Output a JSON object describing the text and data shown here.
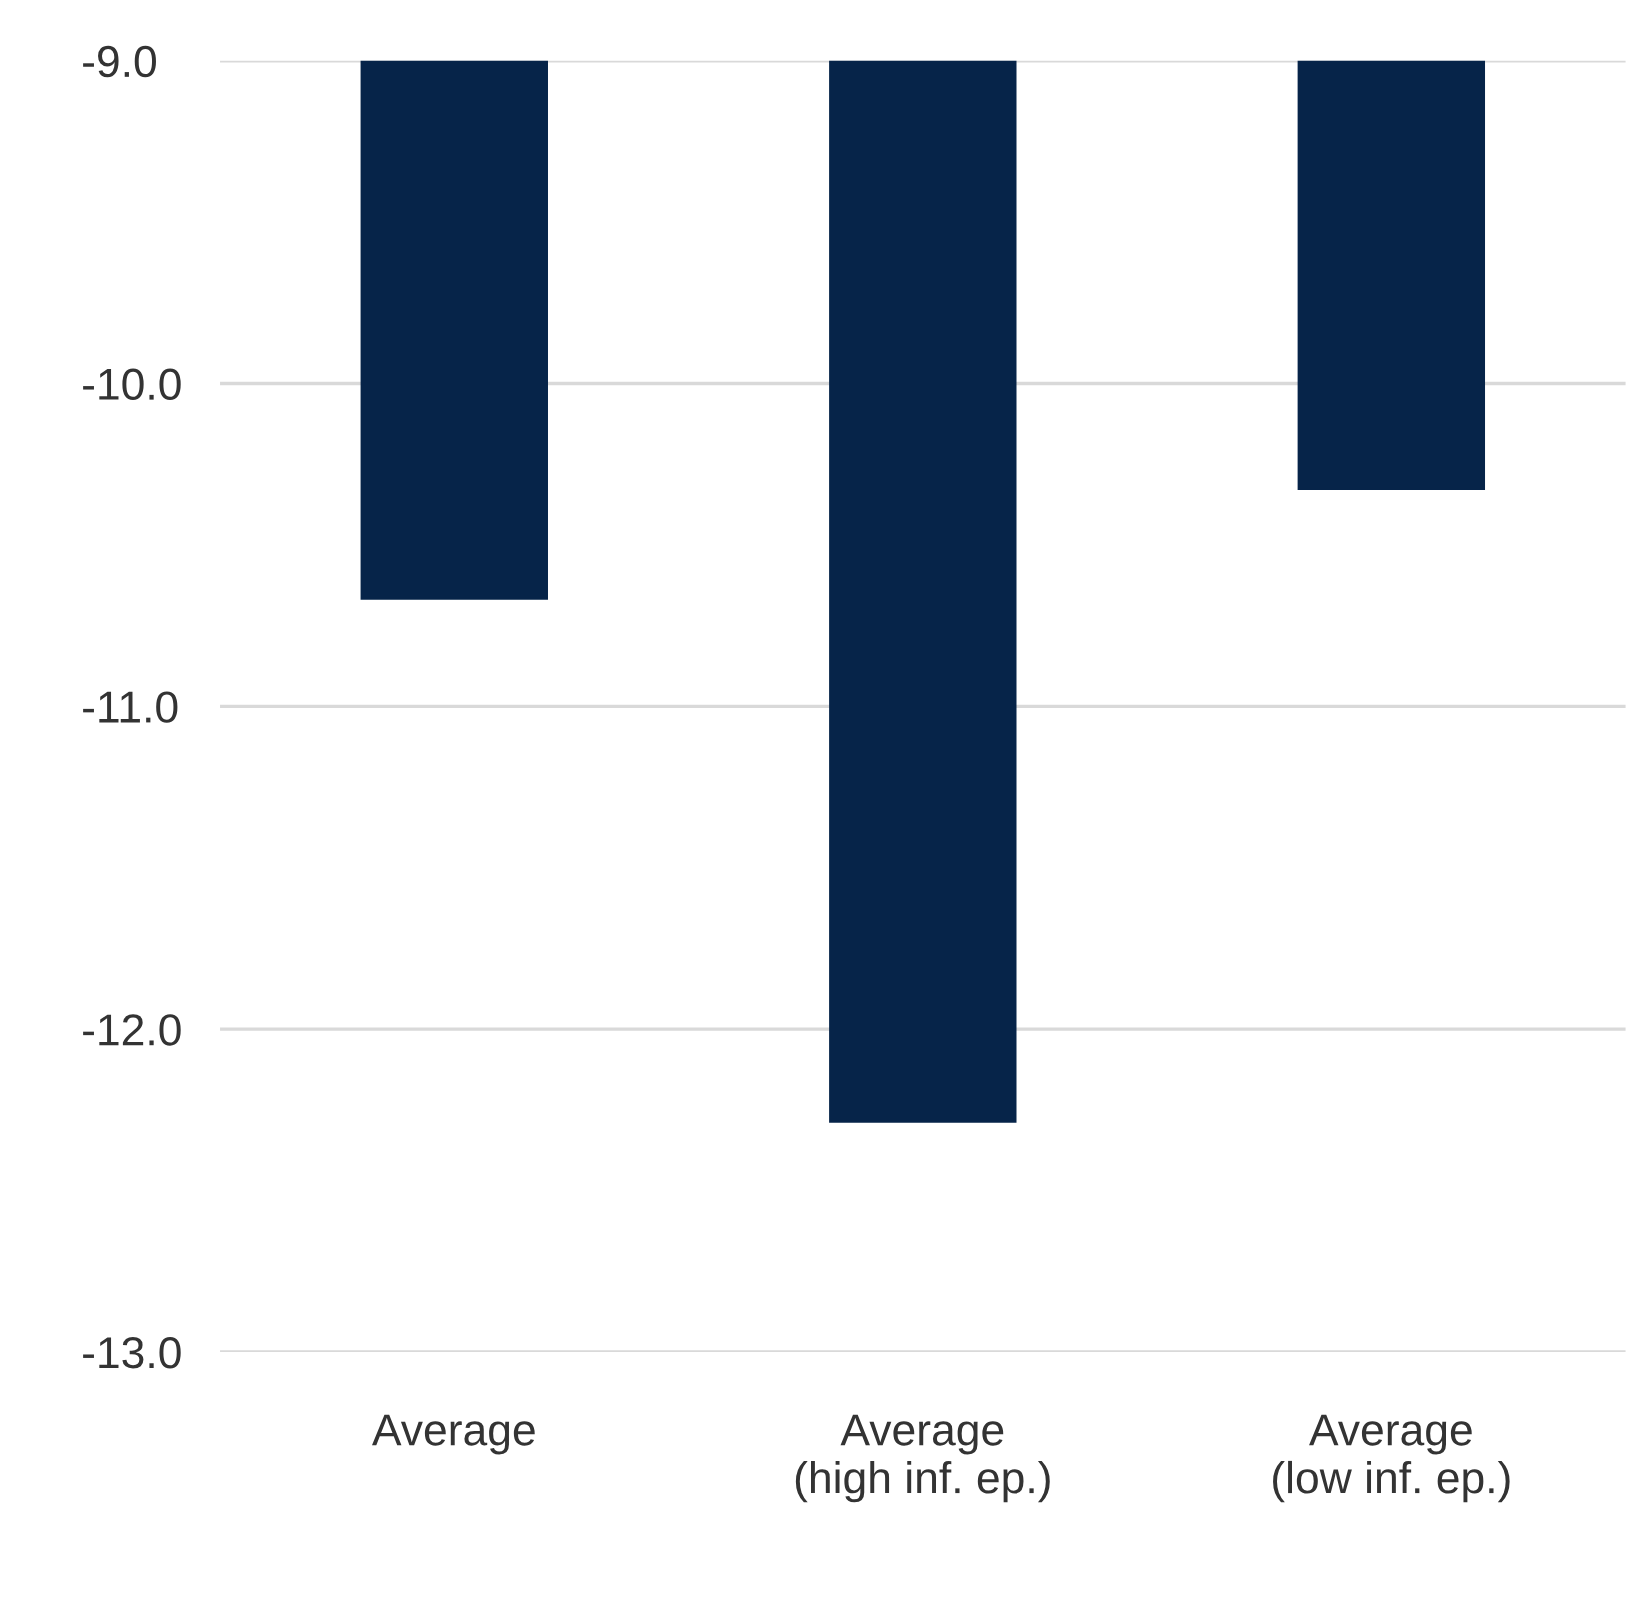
{
  "chart_data": {
    "type": "bar",
    "categories": [
      "Average",
      "Average\n(high inf. ep.)",
      "Average\n(low inf. ep.)"
    ],
    "values": [
      -10.67,
      -12.29,
      -10.33
    ],
    "color": "#062449",
    "ylim": [
      -13,
      -9
    ],
    "yticks": [
      {
        "value": -13,
        "label": "-13.0"
      },
      {
        "value": -12,
        "label": "-12.0"
      },
      {
        "value": -11,
        "label": "-11.0"
      },
      {
        "value": -10,
        "label": "-10.0"
      },
      {
        "value": -9,
        "label": "-9.0"
      }
    ],
    "grid": "y",
    "legend": false
  }
}
